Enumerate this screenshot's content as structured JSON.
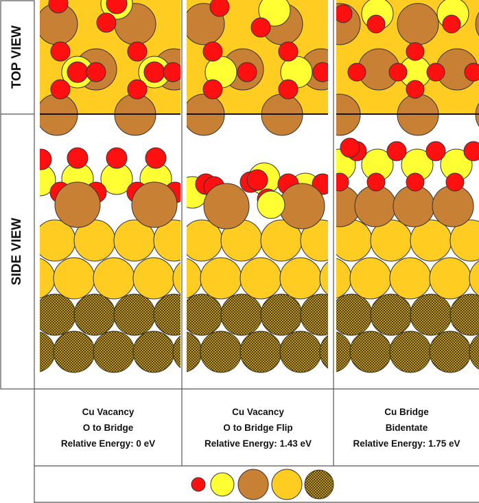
{
  "row_labels": {
    "top": "TOP VIEW",
    "side": "SIDE VIEW"
  },
  "panels": [
    {
      "line1": "Cu Vacancy",
      "line2": "O to Bridge",
      "energy": "Relative Energy: 0 eV"
    },
    {
      "line1": "Cu Vacancy",
      "line2": "O to Bridge Flip",
      "energy": "Relative Energy: 1.43 eV"
    },
    {
      "line1": "Cu Bridge",
      "line2": "Bidentate",
      "energy": "Relative Energy: 1.75 eV"
    }
  ],
  "legend_colors": [
    "#ff1010",
    "#ffff33",
    "#c88035",
    "#ffcc22",
    "checkered"
  ],
  "colors": {
    "oxygen": "#ff1010",
    "sulfur": "#ffff33",
    "copper": "#c88035",
    "gold": "#ffcc22",
    "gold_bulk": "#d4a800"
  }
}
